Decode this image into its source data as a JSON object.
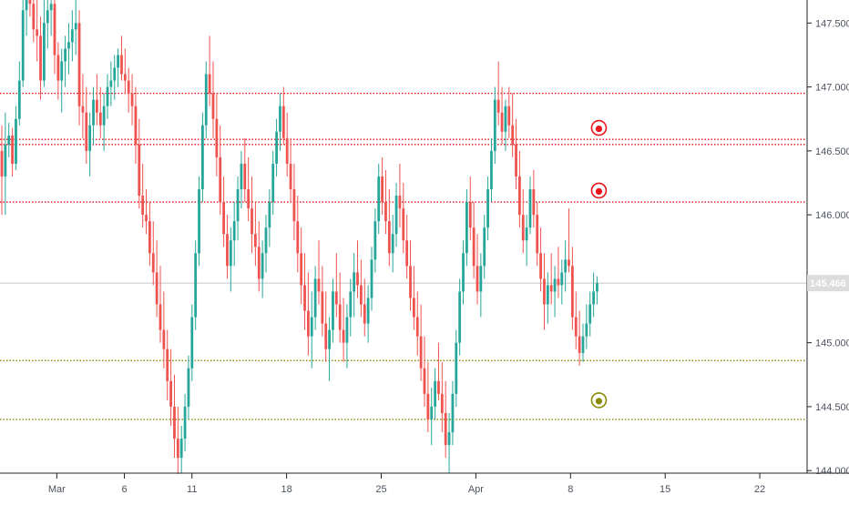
{
  "chart_data": {
    "type": "candlestick",
    "title": "",
    "xlabel": "",
    "ylabel": "",
    "ylim": [
      143.98,
      147.68
    ],
    "y_ticks": [
      144.0,
      144.5,
      145.0,
      145.5,
      146.0,
      146.5,
      147.0,
      147.5
    ],
    "y_tick_labels": [
      "144.000",
      "144.500",
      "145.000",
      "145.500",
      "146.000",
      "146.500",
      "147.000",
      "147.500"
    ],
    "x_ticks": [
      {
        "label": "Mar",
        "day": 0
      },
      {
        "label": "6",
        "day": 5
      },
      {
        "label": "11",
        "day": 10
      },
      {
        "label": "18",
        "day": 17
      },
      {
        "label": "25",
        "day": 24
      },
      {
        "label": "Apr",
        "day": 31
      },
      {
        "label": "8",
        "day": 38
      },
      {
        "label": "15",
        "day": 45
      },
      {
        "label": "22",
        "day": 52
      }
    ],
    "xlim_days": [
      -4.2,
      55.5
    ],
    "current_price": {
      "value": 145.466,
      "label": "145.466"
    },
    "horizontal_levels": [
      {
        "value": 146.95,
        "color": "#e8151b",
        "style": "dotted"
      },
      {
        "value": 146.59,
        "color": "#e8151b",
        "style": "dotted"
      },
      {
        "value": 146.55,
        "color": "#e8151b",
        "style": "dotted"
      },
      {
        "value": 146.1,
        "color": "#e8151b",
        "style": "dotted"
      },
      {
        "value": 144.86,
        "color": "#8a8a00",
        "style": "dotted"
      },
      {
        "value": 144.4,
        "color": "#8a8a00",
        "style": "dotted"
      }
    ],
    "markers": [
      {
        "day": 40.1,
        "value": 146.68,
        "color": "#e8151b"
      },
      {
        "day": 40.1,
        "value": 146.19,
        "color": "#e8151b"
      },
      {
        "day": 40.1,
        "value": 144.55,
        "color": "#8a8a00"
      }
    ],
    "colors": {
      "up": "#26a69a",
      "down": "#ef5350"
    },
    "candles": [
      [
        146.5,
        146.7,
        146.0,
        146.3
      ],
      [
        146.3,
        146.8,
        146.0,
        146.55
      ],
      [
        146.55,
        146.72,
        146.45,
        146.62
      ],
      [
        146.62,
        146.68,
        146.3,
        146.4
      ],
      [
        146.4,
        146.85,
        146.35,
        146.75
      ],
      [
        146.75,
        147.2,
        146.7,
        147.05
      ],
      [
        147.05,
        147.75,
        147.0,
        147.6
      ],
      [
        147.6,
        147.9,
        147.4,
        147.7
      ],
      [
        147.7,
        147.85,
        147.55,
        147.65
      ],
      [
        147.65,
        147.8,
        147.35,
        147.45
      ],
      [
        147.45,
        147.7,
        147.2,
        147.4
      ],
      [
        147.4,
        147.55,
        146.9,
        147.05
      ],
      [
        147.05,
        147.7,
        147.0,
        147.5
      ],
      [
        147.5,
        147.7,
        147.3,
        147.6
      ],
      [
        147.6,
        147.8,
        147.4,
        147.65
      ],
      [
        147.65,
        147.7,
        147.1,
        147.25
      ],
      [
        147.25,
        147.35,
        146.9,
        147.05
      ],
      [
        147.05,
        147.3,
        146.8,
        147.2
      ],
      [
        147.2,
        147.4,
        147.0,
        147.3
      ],
      [
        147.3,
        147.5,
        147.1,
        147.35
      ],
      [
        147.35,
        147.6,
        147.2,
        147.45
      ],
      [
        147.45,
        147.7,
        147.25,
        147.5
      ],
      [
        147.5,
        147.6,
        146.7,
        146.85
      ],
      [
        146.85,
        147.1,
        146.6,
        146.8
      ],
      [
        146.8,
        147.0,
        146.4,
        146.5
      ],
      [
        146.5,
        146.8,
        146.3,
        146.7
      ],
      [
        146.7,
        147.0,
        146.55,
        146.9
      ],
      [
        146.9,
        147.1,
        146.7,
        146.8
      ],
      [
        146.8,
        147.0,
        146.6,
        146.7
      ],
      [
        146.7,
        146.95,
        146.5,
        146.85
      ],
      [
        146.85,
        147.1,
        146.75,
        147.0
      ],
      [
        147.0,
        147.2,
        146.85,
        147.05
      ],
      [
        147.05,
        147.25,
        146.9,
        147.15
      ],
      [
        147.15,
        147.3,
        147.0,
        147.25
      ],
      [
        147.25,
        147.4,
        147.05,
        147.1
      ],
      [
        147.1,
        147.3,
        146.95,
        147.05
      ],
      [
        147.05,
        147.15,
        146.8,
        146.95
      ],
      [
        146.95,
        147.1,
        146.7,
        146.85
      ],
      [
        146.85,
        147.0,
        146.4,
        146.55
      ],
      [
        146.55,
        146.75,
        146.05,
        146.15
      ],
      [
        146.15,
        146.4,
        145.9,
        146.0
      ],
      [
        146.0,
        146.2,
        145.85,
        145.95
      ],
      [
        145.95,
        146.1,
        145.6,
        145.7
      ],
      [
        145.7,
        145.95,
        145.45,
        145.55
      ],
      [
        145.55,
        145.8,
        145.2,
        145.3
      ],
      [
        145.3,
        145.6,
        145.0,
        145.1
      ],
      [
        145.1,
        145.4,
        144.8,
        144.95
      ],
      [
        144.95,
        145.1,
        144.55,
        144.7
      ],
      [
        144.7,
        144.95,
        144.35,
        144.5
      ],
      [
        144.5,
        144.75,
        144.1,
        144.25
      ],
      [
        144.25,
        144.5,
        143.95,
        144.1
      ],
      [
        144.1,
        144.35,
        143.98,
        144.25
      ],
      [
        144.25,
        144.6,
        144.15,
        144.5
      ],
      [
        144.5,
        144.9,
        144.4,
        144.8
      ],
      [
        144.8,
        145.3,
        144.7,
        145.2
      ],
      [
        145.2,
        145.8,
        145.1,
        145.7
      ],
      [
        145.7,
        146.3,
        145.6,
        146.2
      ],
      [
        146.2,
        146.8,
        146.1,
        146.7
      ],
      [
        146.7,
        147.2,
        146.6,
        147.1
      ],
      [
        147.1,
        147.4,
        146.85,
        146.95
      ],
      [
        146.95,
        147.2,
        146.6,
        146.75
      ],
      [
        146.75,
        146.95,
        146.3,
        146.45
      ],
      [
        146.45,
        146.7,
        146.0,
        146.1
      ],
      [
        146.1,
        146.3,
        145.75,
        145.85
      ],
      [
        145.85,
        146.0,
        145.5,
        145.6
      ],
      [
        145.6,
        145.9,
        145.4,
        145.8
      ],
      [
        145.8,
        146.1,
        145.6,
        145.95
      ],
      [
        145.95,
        146.3,
        145.8,
        146.2
      ],
      [
        146.2,
        146.5,
        146.05,
        146.4
      ],
      [
        146.4,
        146.6,
        146.1,
        146.2
      ],
      [
        146.2,
        146.45,
        145.95,
        146.05
      ],
      [
        146.05,
        146.3,
        145.7,
        145.85
      ],
      [
        145.85,
        146.1,
        145.6,
        145.75
      ],
      [
        145.75,
        145.95,
        145.4,
        145.5
      ],
      [
        145.5,
        145.8,
        145.35,
        145.7
      ],
      [
        145.7,
        146.0,
        145.55,
        145.9
      ],
      [
        145.9,
        146.2,
        145.75,
        146.1
      ],
      [
        146.1,
        146.5,
        146.0,
        146.4
      ],
      [
        146.4,
        146.75,
        146.3,
        146.65
      ],
      [
        146.65,
        146.95,
        146.5,
        146.85
      ],
      [
        146.85,
        147.0,
        146.55,
        146.6
      ],
      [
        146.6,
        146.8,
        146.3,
        146.4
      ],
      [
        146.4,
        146.6,
        146.1,
        146.2
      ],
      [
        146.2,
        146.4,
        145.8,
        145.95
      ],
      [
        145.95,
        146.15,
        145.55,
        145.7
      ],
      [
        145.7,
        145.9,
        145.3,
        145.45
      ],
      [
        145.45,
        145.7,
        145.1,
        145.25
      ],
      [
        145.25,
        145.55,
        144.9,
        145.05
      ],
      [
        145.05,
        145.4,
        144.8,
        145.2
      ],
      [
        145.2,
        145.6,
        145.1,
        145.5
      ],
      [
        145.5,
        145.8,
        145.3,
        145.4
      ],
      [
        145.4,
        145.6,
        145.05,
        145.15
      ],
      [
        145.15,
        145.4,
        144.85,
        144.95
      ],
      [
        144.95,
        145.2,
        144.7,
        145.1
      ],
      [
        145.1,
        145.5,
        145.0,
        145.4
      ],
      [
        145.4,
        145.7,
        145.2,
        145.3
      ],
      [
        145.3,
        145.55,
        145.0,
        145.1
      ],
      [
        145.1,
        145.35,
        144.85,
        145.0
      ],
      [
        145.0,
        145.3,
        144.8,
        145.2
      ],
      [
        145.2,
        145.5,
        145.05,
        145.4
      ],
      [
        145.4,
        145.7,
        145.2,
        145.55
      ],
      [
        145.55,
        145.8,
        145.35,
        145.45
      ],
      [
        145.45,
        145.65,
        145.2,
        145.3
      ],
      [
        145.3,
        145.5,
        145.05,
        145.15
      ],
      [
        145.15,
        145.45,
        145.0,
        145.35
      ],
      [
        145.35,
        145.75,
        145.25,
        145.65
      ],
      [
        145.65,
        146.05,
        145.55,
        145.95
      ],
      [
        145.95,
        146.4,
        145.85,
        146.3
      ],
      [
        146.3,
        146.45,
        146.0,
        146.1
      ],
      [
        146.1,
        146.35,
        145.85,
        145.95
      ],
      [
        145.95,
        146.2,
        145.6,
        145.7
      ],
      [
        145.7,
        146.0,
        145.55,
        145.85
      ],
      [
        145.85,
        146.25,
        145.75,
        146.15
      ],
      [
        146.15,
        146.4,
        145.9,
        146.05
      ],
      [
        146.05,
        146.25,
        145.7,
        145.8
      ],
      [
        145.8,
        146.0,
        145.5,
        145.6
      ],
      [
        145.6,
        145.8,
        145.25,
        145.35
      ],
      [
        145.35,
        145.6,
        145.1,
        145.2
      ],
      [
        145.2,
        145.4,
        144.9,
        145.05
      ],
      [
        145.05,
        145.3,
        144.7,
        144.8
      ],
      [
        144.8,
        145.05,
        144.5,
        144.6
      ],
      [
        144.6,
        144.85,
        144.3,
        144.4
      ],
      [
        144.4,
        144.65,
        144.2,
        144.5
      ],
      [
        144.5,
        144.8,
        144.4,
        144.7
      ],
      [
        144.7,
        145.0,
        144.55,
        144.6
      ],
      [
        144.6,
        144.85,
        144.3,
        144.45
      ],
      [
        144.45,
        144.7,
        144.1,
        144.2
      ],
      [
        144.2,
        144.45,
        143.98,
        144.3
      ],
      [
        144.3,
        144.7,
        144.2,
        144.6
      ],
      [
        144.6,
        145.1,
        144.5,
        145.0
      ],
      [
        145.0,
        145.5,
        144.9,
        145.4
      ],
      [
        145.4,
        145.8,
        145.3,
        145.7
      ],
      [
        145.7,
        146.2,
        145.6,
        146.1
      ],
      [
        146.1,
        146.3,
        145.8,
        145.9
      ],
      [
        145.9,
        146.1,
        145.5,
        145.6
      ],
      [
        145.6,
        145.85,
        145.3,
        145.4
      ],
      [
        145.4,
        145.7,
        145.2,
        145.6
      ],
      [
        145.6,
        146.0,
        145.5,
        145.9
      ],
      [
        145.9,
        146.3,
        145.8,
        146.2
      ],
      [
        146.2,
        146.6,
        146.1,
        146.5
      ],
      [
        146.5,
        147.0,
        146.4,
        146.9
      ],
      [
        146.9,
        147.2,
        146.7,
        146.8
      ],
      [
        146.8,
        147.0,
        146.55,
        146.65
      ],
      [
        146.65,
        146.9,
        146.5,
        146.85
      ],
      [
        146.85,
        147.0,
        146.6,
        146.7
      ],
      [
        146.7,
        146.95,
        146.45,
        146.55
      ],
      [
        146.55,
        146.75,
        146.2,
        146.3
      ],
      [
        146.3,
        146.5,
        145.9,
        146.0
      ],
      [
        146.0,
        146.2,
        145.7,
        145.8
      ],
      [
        145.8,
        146.0,
        145.6,
        145.9
      ],
      [
        145.9,
        146.3,
        145.85,
        146.2
      ],
      [
        146.2,
        146.35,
        145.9,
        146.0
      ],
      [
        146.0,
        146.1,
        145.6,
        145.7
      ],
      [
        145.7,
        145.9,
        145.4,
        145.5
      ],
      [
        145.5,
        145.7,
        145.1,
        145.3
      ],
      [
        145.3,
        145.55,
        145.15,
        145.45
      ],
      [
        145.45,
        145.7,
        145.3,
        145.4
      ],
      [
        145.4,
        145.6,
        145.2,
        145.5
      ],
      [
        145.5,
        145.75,
        145.35,
        145.45
      ],
      [
        145.45,
        145.65,
        145.3,
        145.55
      ],
      [
        145.55,
        145.8,
        145.4,
        145.65
      ],
      [
        145.65,
        146.05,
        145.55,
        145.6
      ],
      [
        145.6,
        145.75,
        145.1,
        145.2
      ],
      [
        145.2,
        145.4,
        144.95,
        145.05
      ],
      [
        145.05,
        145.25,
        144.82,
        144.92
      ],
      [
        144.92,
        145.15,
        144.85,
        145.05
      ],
      [
        145.05,
        145.3,
        144.95,
        145.15
      ],
      [
        145.15,
        145.4,
        145.05,
        145.3
      ],
      [
        145.3,
        145.55,
        145.2,
        145.4
      ],
      [
        145.4,
        145.52,
        145.3,
        145.466
      ]
    ]
  }
}
